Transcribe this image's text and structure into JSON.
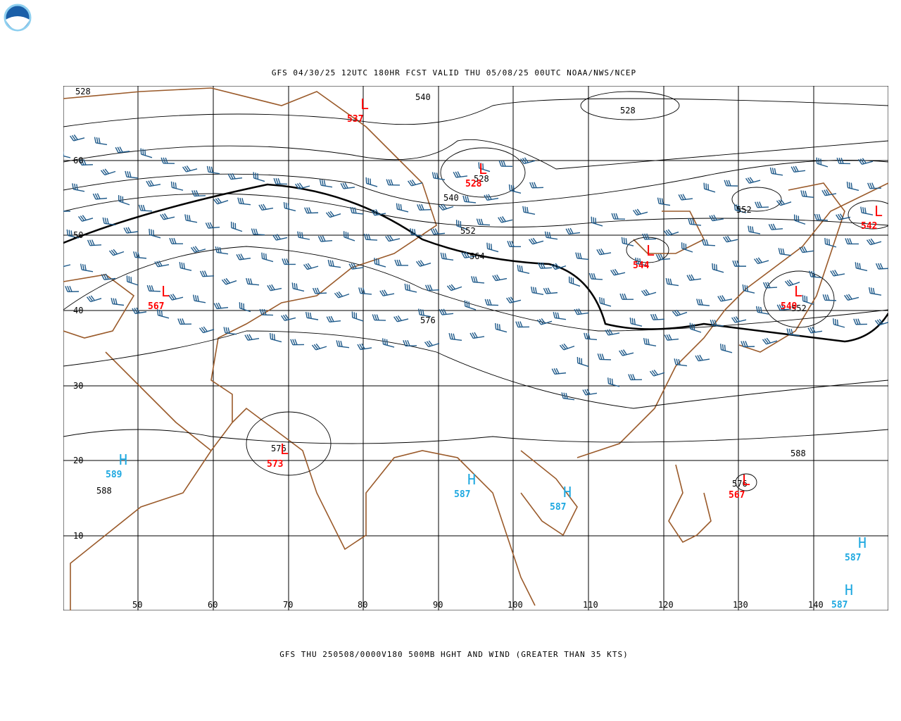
{
  "header": {
    "title": "GFS 04/30/25 12UTC 180HR FCST VALID THU 05/08/25 00UTC NOAA/NWS/NCEP"
  },
  "footer": {
    "caption": "GFS THU 250508/0000V180 500MB HGHT AND WIND (GREATER THAN 35 KTS)"
  },
  "map": {
    "latitude_labels": [
      "60",
      "50",
      "40",
      "30",
      "20",
      "10"
    ],
    "longitude_labels": [
      "50",
      "60",
      "70",
      "80",
      "90",
      "100",
      "110",
      "120",
      "130",
      "140"
    ],
    "contour_labels": [
      "528",
      "540",
      "528",
      "528",
      "540",
      "552",
      "552",
      "564",
      "576",
      "552",
      "576",
      "588",
      "588",
      "576"
    ],
    "lows": [
      {
        "symbol": "L",
        "value": "537"
      },
      {
        "symbol": "L",
        "value": "528"
      },
      {
        "symbol": "L",
        "value": "544"
      },
      {
        "symbol": "L",
        "value": "542"
      },
      {
        "symbol": "L",
        "value": "567"
      },
      {
        "symbol": "L",
        "value": "573"
      },
      {
        "symbol": "L",
        "value": "567"
      },
      {
        "symbol": "L",
        "value": "549"
      }
    ],
    "highs": [
      {
        "symbol": "H",
        "value": "589"
      },
      {
        "symbol": "H",
        "value": "587"
      },
      {
        "symbol": "H",
        "value": "587"
      },
      {
        "symbol": "H",
        "value": "587"
      },
      {
        "symbol": "H",
        "value": "587"
      }
    ]
  }
}
